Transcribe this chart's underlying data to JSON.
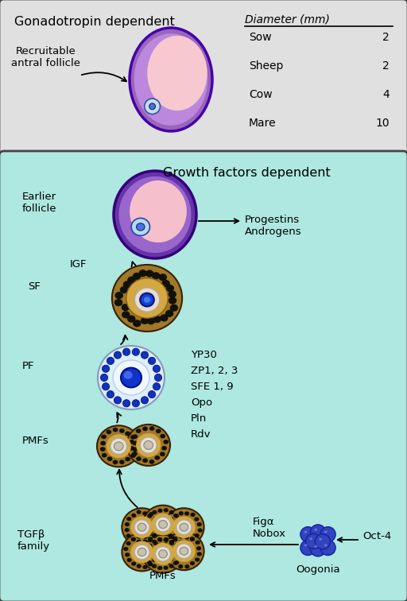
{
  "top_box": {
    "bg_color": "#e0e0e0",
    "border_color": "#444444",
    "title": "Gonadotropin dependent",
    "recruitable_label": "Recruitable\nantral follicle",
    "table_header": "Diameter (mm)",
    "table_rows": [
      [
        "Sow",
        "2"
      ],
      [
        "Sheep",
        "2"
      ],
      [
        "Cow",
        "4"
      ],
      [
        "Mare",
        "10"
      ]
    ]
  },
  "bottom_box": {
    "bg_color": "#aee8e0",
    "border_color": "#444444",
    "title": "Growth factors dependent",
    "earlier_label": "Earlier\nfollicle",
    "igf_label": "IGF",
    "sf_label": "SF",
    "pf_label": "PF",
    "pmfs_label_upper": "PMFs",
    "pmfs_label_lower": "PMFs",
    "progestins_label": "Progestins\nAndrogens",
    "yp30_label": "YP30\nZP1, 2, 3\nSFE 1, 9\nOpo\nPln\nRdv",
    "figa_label": "Figα\nNobox",
    "tgfb_label": "TGFβ\nfamily",
    "oogonia_label": "Oogonia",
    "oct4_label": "Oct-4"
  },
  "text_color": "#000000",
  "arrow_color": "#000000"
}
